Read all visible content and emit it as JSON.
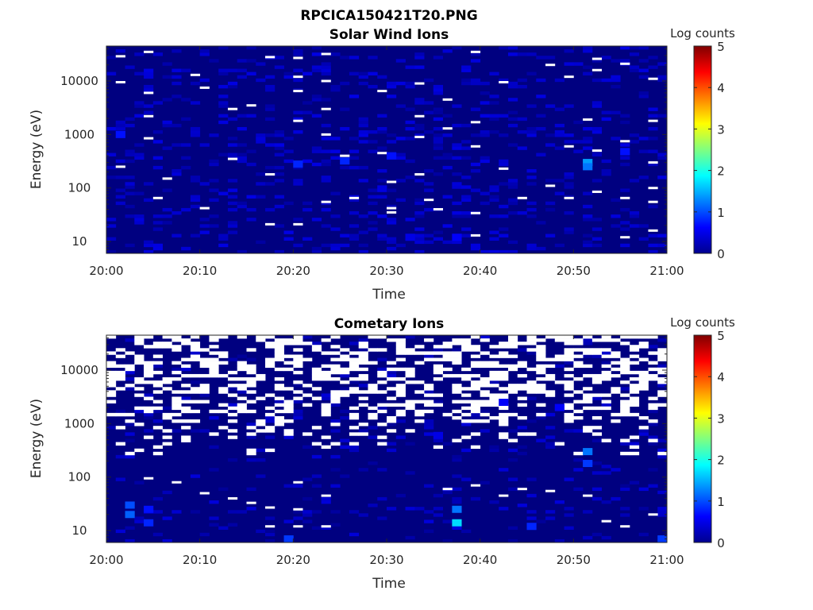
{
  "figure": {
    "title": "RPCICA150421T20.PNG"
  },
  "colors": {
    "background_blue": "#00008f",
    "gap_white": "#ffffff",
    "axis": "#262626"
  },
  "chart_data": [
    {
      "type": "heatmap",
      "title": "Solar Wind Ions",
      "xlabel": "Time",
      "ylabel": "Energy (eV)",
      "x_ticks": [
        "20:00",
        "20:10",
        "20:20",
        "20:30",
        "20:40",
        "20:50",
        "21:00"
      ],
      "xlim": [
        "20:00",
        "21:00"
      ],
      "y_scale": "log",
      "y_ticks": [
        "10",
        "100",
        "1000",
        "10000"
      ],
      "ylim": [
        6,
        45000
      ],
      "colorbar": {
        "label": "Log counts",
        "ticks": [
          "0",
          "1",
          "2",
          "3",
          "4",
          "5"
        ],
        "range": [
          0,
          5
        ],
        "colormap": "jet"
      },
      "background_value": 0,
      "white_gaps": [
        {
          "t": 1,
          "e": 29000
        },
        {
          "t": 4,
          "e": 35000
        },
        {
          "t": 17,
          "e": 28000
        },
        {
          "t": 20,
          "e": 27000
        },
        {
          "t": 23,
          "e": 32000
        },
        {
          "t": 39,
          "e": 35000
        },
        {
          "t": 52,
          "e": 26000
        },
        {
          "t": 55,
          "e": 21000
        },
        {
          "t": 9,
          "e": 13000
        },
        {
          "t": 20,
          "e": 12000
        },
        {
          "t": 23,
          "e": 10000
        },
        {
          "t": 33,
          "e": 9000
        },
        {
          "t": 42,
          "e": 9500
        },
        {
          "t": 47,
          "e": 20000
        },
        {
          "t": 49,
          "e": 12000
        },
        {
          "t": 52,
          "e": 16000
        },
        {
          "t": 58,
          "e": 11000
        },
        {
          "t": 1,
          "e": 9500
        },
        {
          "t": 4,
          "e": 6000
        },
        {
          "t": 10,
          "e": 7500
        },
        {
          "t": 13,
          "e": 3000
        },
        {
          "t": 15,
          "e": 3500
        },
        {
          "t": 20,
          "e": 6500
        },
        {
          "t": 23,
          "e": 3000
        },
        {
          "t": 4,
          "e": 2200
        },
        {
          "t": 20,
          "e": 1800
        },
        {
          "t": 33,
          "e": 2200
        },
        {
          "t": 36,
          "e": 1300
        },
        {
          "t": 39,
          "e": 1700
        },
        {
          "t": 51,
          "e": 1900
        },
        {
          "t": 58,
          "e": 1800
        },
        {
          "t": 4,
          "e": 850
        },
        {
          "t": 23,
          "e": 1000
        },
        {
          "t": 33,
          "e": 900
        },
        {
          "t": 39,
          "e": 600
        },
        {
          "t": 49,
          "e": 600
        },
        {
          "t": 55,
          "e": 750
        },
        {
          "t": 1,
          "e": 250
        },
        {
          "t": 6,
          "e": 150
        },
        {
          "t": 13,
          "e": 350
        },
        {
          "t": 17,
          "e": 180
        },
        {
          "t": 25,
          "e": 400
        },
        {
          "t": 29,
          "e": 450
        },
        {
          "t": 33,
          "e": 180
        },
        {
          "t": 42,
          "e": 230
        },
        {
          "t": 52,
          "e": 500
        },
        {
          "t": 58,
          "e": 300
        },
        {
          "t": 5,
          "e": 65
        },
        {
          "t": 10,
          "e": 42
        },
        {
          "t": 23,
          "e": 55
        },
        {
          "t": 26,
          "e": 65
        },
        {
          "t": 30,
          "e": 130
        },
        {
          "t": 34,
          "e": 60
        },
        {
          "t": 44,
          "e": 65
        },
        {
          "t": 47,
          "e": 110
        },
        {
          "t": 49,
          "e": 65
        },
        {
          "t": 52,
          "e": 85
        },
        {
          "t": 55,
          "e": 65
        },
        {
          "t": 58,
          "e": 100
        },
        {
          "t": 58,
          "e": 55
        },
        {
          "t": 17,
          "e": 21
        },
        {
          "t": 20,
          "e": 21
        },
        {
          "t": 30,
          "e": 42
        },
        {
          "t": 30,
          "e": 35
        },
        {
          "t": 35,
          "e": 40
        },
        {
          "t": 39,
          "e": 34
        },
        {
          "t": 39,
          "e": 13
        },
        {
          "t": 55,
          "e": 12
        },
        {
          "t": 58,
          "e": 16
        },
        {
          "t": 29,
          "e": 6500
        },
        {
          "t": 36,
          "e": 4500
        }
      ],
      "enhanced_cells": [
        {
          "t": 51,
          "e": 300,
          "v": 1.4
        },
        {
          "t": 51,
          "e": 250,
          "v": 1.2
        },
        {
          "t": 20,
          "e": 280,
          "v": 0.8
        },
        {
          "t": 25,
          "e": 320,
          "v": 0.8
        },
        {
          "t": 30,
          "e": 400,
          "v": 0.7
        },
        {
          "t": 1,
          "e": 1000,
          "v": 0.7
        },
        {
          "t": 55,
          "e": 480,
          "v": 0.7
        },
        {
          "t": 37,
          "e": 12,
          "v": 0.6
        },
        {
          "t": 32,
          "e": 12,
          "v": 0.5
        }
      ]
    },
    {
      "type": "heatmap",
      "title": "Cometary Ions",
      "xlabel": "Time",
      "ylabel": "Energy (eV)",
      "x_ticks": [
        "20:00",
        "20:10",
        "20:20",
        "20:30",
        "20:40",
        "20:50",
        "21:00"
      ],
      "xlim": [
        "20:00",
        "21:00"
      ],
      "y_scale": "log",
      "y_ticks": [
        "10",
        "100",
        "1000",
        "10000"
      ],
      "ylim": [
        6,
        45000
      ],
      "colorbar": {
        "label": "Log counts",
        "ticks": [
          "0",
          "1",
          "2",
          "3",
          "4",
          "5"
        ],
        "range": [
          0,
          5
        ],
        "colormap": "jet"
      },
      "background_value": 0,
      "white_gaps": [
        {
          "t": 17,
          "e": 12
        },
        {
          "t": 20,
          "e": 12
        },
        {
          "t": 20,
          "e": 25
        },
        {
          "t": 23,
          "e": 12
        },
        {
          "t": 13,
          "e": 40
        },
        {
          "t": 15,
          "e": 33
        },
        {
          "t": 17,
          "e": 27
        },
        {
          "t": 23,
          "e": 45
        },
        {
          "t": 55,
          "e": 12
        },
        {
          "t": 53,
          "e": 15
        },
        {
          "t": 58,
          "e": 20
        },
        {
          "t": 42,
          "e": 45
        },
        {
          "t": 44,
          "e": 60
        },
        {
          "t": 47,
          "e": 55
        },
        {
          "t": 51,
          "e": 45
        },
        {
          "t": 39,
          "e": 70
        },
        {
          "t": 36,
          "e": 60
        },
        {
          "t": 20,
          "e": 80
        },
        {
          "t": 10,
          "e": 50
        },
        {
          "t": 4,
          "e": 95
        },
        {
          "t": 7,
          "e": 80
        }
      ],
      "high_energy_gap_fraction": 0.45,
      "enhanced_cells": [
        {
          "t": 2,
          "e": 20,
          "v": 1.1
        },
        {
          "t": 2,
          "e": 30,
          "v": 1.0
        },
        {
          "t": 4,
          "e": 14,
          "v": 0.8
        },
        {
          "t": 4,
          "e": 25,
          "v": 0.7
        },
        {
          "t": 37,
          "e": 14,
          "v": 1.7
        },
        {
          "t": 37,
          "e": 25,
          "v": 1.2
        },
        {
          "t": 45,
          "e": 12,
          "v": 0.8
        },
        {
          "t": 51,
          "e": 300,
          "v": 1.2
        },
        {
          "t": 51,
          "e": 180,
          "v": 0.9
        },
        {
          "t": 48,
          "e": 2000,
          "v": 0.6
        },
        {
          "t": 42,
          "e": 2500,
          "v": 0.6
        },
        {
          "t": 19,
          "e": 7,
          "v": 0.9
        },
        {
          "t": 59,
          "e": 7,
          "v": 0.9
        },
        {
          "t": 35,
          "e": 600,
          "v": 0.5
        }
      ]
    }
  ]
}
